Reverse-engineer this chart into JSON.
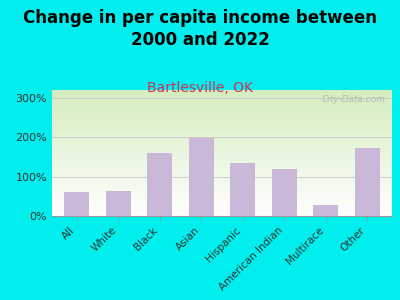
{
  "title": "Change in per capita income between\n2000 and 2022",
  "subtitle": "Bartlesville, OK",
  "categories": [
    "All",
    "White",
    "Black",
    "Asian",
    "Hispanic",
    "American Indian",
    "Multirace",
    "Other"
  ],
  "values": [
    60,
    63,
    160,
    198,
    135,
    120,
    28,
    172
  ],
  "bar_color": "#c9b8d8",
  "title_fontsize": 12,
  "subtitle_fontsize": 10,
  "subtitle_color": "#cc3355",
  "background_outer": "#00eeee",
  "plot_bg_top": "#d4edbe",
  "plot_bg_bottom": "#ffffff",
  "ylabel_ticks": [
    "0%",
    "100%",
    "200%",
    "300%"
  ],
  "ytick_values": [
    0,
    100,
    200,
    300
  ],
  "ylim": [
    0,
    320
  ],
  "watermark": "City-Data.com",
  "watermark_color": "#aaaaaa",
  "grid_color": "#cccccc"
}
